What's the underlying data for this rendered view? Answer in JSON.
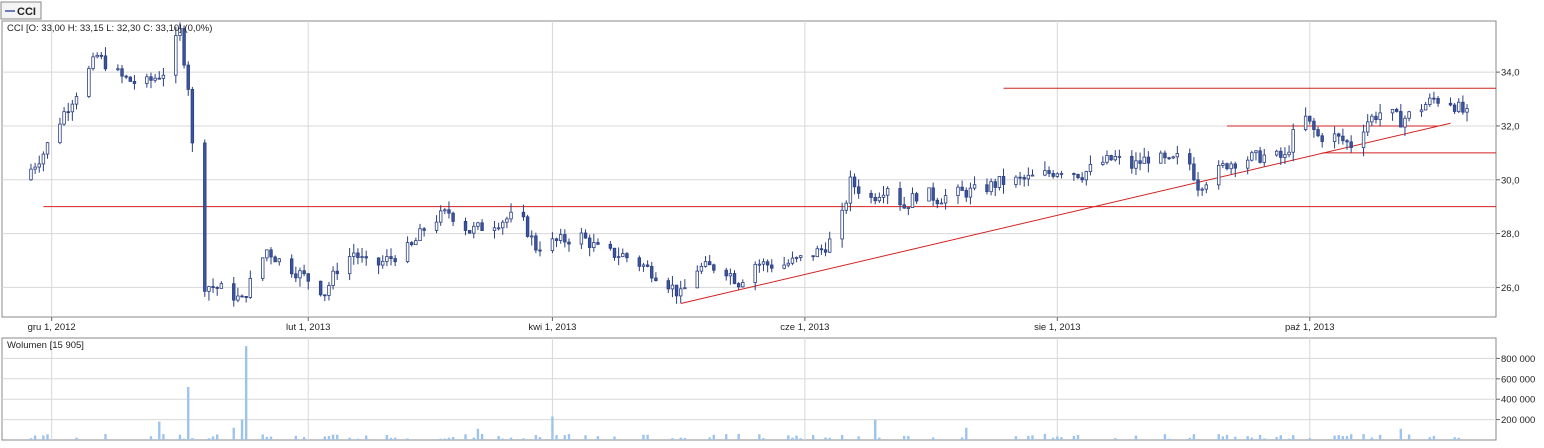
{
  "legend_tab": {
    "label": "CCI"
  },
  "colors": {
    "candle": "#3b55a0",
    "candle_outline": "#2b3f80",
    "trendline": "#d42020",
    "grid": "#d8d8d8",
    "volume_bar": "#9ec4ec",
    "axis_text": "#222222"
  },
  "chart_data": [
    {
      "type": "candlestick",
      "title": "CCI [O: 33,00  H: 33,15  L: 32,30  C: 33,10] (0,0%)",
      "x_tick_labels": [
        "gru 1, 2012",
        "lut 1, 2013",
        "kwi 1, 2013",
        "cze 1, 2013",
        "sie 1, 2013",
        "paź 1, 2013"
      ],
      "x_tick_dates": [
        "2012-12-01",
        "2013-02-01",
        "2013-04-01",
        "2013-06-01",
        "2013-08-01",
        "2013-10-01"
      ],
      "x_range": [
        "2012-11-19",
        "2013-11-15"
      ],
      "y_tick_labels": [
        "26,0",
        "28,0",
        "30,0",
        "32,0",
        "34,0"
      ],
      "y_tick_values": [
        26,
        28,
        30,
        32,
        34
      ],
      "ylim": [
        24.9,
        35.9
      ],
      "grid": true,
      "horizontal_lines": [
        {
          "y": 29.0,
          "from": "2012-11-29",
          "to": "2013-11-15"
        },
        {
          "y": 31.0,
          "from": "2013-10-04",
          "to": "2013-11-15"
        },
        {
          "y": 32.0,
          "from": "2013-09-11",
          "to": "2013-11-01"
        },
        {
          "y": 33.4,
          "from": "2013-07-19",
          "to": "2013-11-15"
        }
      ],
      "trend_lines": [
        {
          "from": [
            "2013-05-02",
            25.4
          ],
          "to": [
            "2013-11-04",
            32.1
          ]
        }
      ],
      "anchors": [
        [
          "2012-11-24",
          30.0
        ],
        [
          "2012-11-29",
          31.0
        ],
        [
          "2012-12-04",
          32.5
        ],
        [
          "2012-12-08",
          33.5
        ],
        [
          "2012-12-12",
          34.6
        ],
        [
          "2012-12-15",
          34.2
        ],
        [
          "2012-12-18",
          33.8
        ],
        [
          "2012-12-23",
          33.5
        ],
        [
          "2012-12-28",
          34.0
        ],
        [
          "2013-01-01",
          35.5
        ],
        [
          "2013-01-03",
          33.5
        ],
        [
          "2013-01-05",
          29.0
        ],
        [
          "2013-01-07",
          26.1
        ],
        [
          "2013-01-12",
          25.9
        ],
        [
          "2013-01-16",
          25.5
        ],
        [
          "2013-01-19",
          26.5
        ],
        [
          "2013-01-22",
          27.4
        ],
        [
          "2013-01-25",
          27.0
        ],
        [
          "2013-01-30",
          26.5
        ],
        [
          "2013-02-02",
          26.2
        ],
        [
          "2013-02-05",
          25.8
        ],
        [
          "2013-02-08",
          26.7
        ],
        [
          "2013-02-12",
          27.3
        ],
        [
          "2013-02-16",
          26.7
        ],
        [
          "2013-02-21",
          27.1
        ],
        [
          "2013-02-26",
          27.5
        ],
        [
          "2013-03-02",
          28.4
        ],
        [
          "2013-03-07",
          28.8
        ],
        [
          "2013-03-12",
          28.1
        ],
        [
          "2013-03-16",
          28.3
        ],
        [
          "2013-03-20",
          28.5
        ],
        [
          "2013-03-24",
          28.7
        ],
        [
          "2013-03-28",
          27.5
        ],
        [
          "2013-04-02",
          27.7
        ],
        [
          "2013-04-08",
          27.9
        ],
        [
          "2013-04-13",
          27.3
        ],
        [
          "2013-04-18",
          27.2
        ],
        [
          "2013-04-23",
          26.8
        ],
        [
          "2013-04-28",
          26.3
        ],
        [
          "2013-05-02",
          25.7
        ],
        [
          "2013-05-06",
          26.7
        ],
        [
          "2013-05-12",
          26.8
        ],
        [
          "2013-05-16",
          26.2
        ],
        [
          "2013-05-20",
          26.9
        ],
        [
          "2013-05-26",
          26.8
        ],
        [
          "2013-06-01",
          27.1
        ],
        [
          "2013-06-05",
          27.4
        ],
        [
          "2013-06-09",
          28.0
        ],
        [
          "2013-06-12",
          29.9
        ],
        [
          "2013-06-17",
          29.3
        ],
        [
          "2013-06-21",
          29.8
        ],
        [
          "2013-06-25",
          29.0
        ],
        [
          "2013-06-29",
          29.6
        ],
        [
          "2013-07-03",
          29.3
        ],
        [
          "2013-07-08",
          29.5
        ],
        [
          "2013-07-13",
          29.6
        ],
        [
          "2013-07-18",
          29.9
        ],
        [
          "2013-07-24",
          30.0
        ],
        [
          "2013-07-29",
          30.2
        ],
        [
          "2013-08-02",
          30.4
        ],
        [
          "2013-08-07",
          30.2
        ],
        [
          "2013-08-11",
          30.6
        ],
        [
          "2013-08-15",
          30.8
        ],
        [
          "2013-08-19",
          30.5
        ],
        [
          "2013-08-24",
          30.9
        ],
        [
          "2013-08-28",
          30.6
        ],
        [
          "2013-09-01",
          31.0
        ],
        [
          "2013-09-04",
          29.8
        ],
        [
          "2013-09-08",
          30.2
        ],
        [
          "2013-09-11",
          30.6
        ],
        [
          "2013-09-16",
          30.8
        ],
        [
          "2013-09-21",
          30.9
        ],
        [
          "2013-09-25",
          30.8
        ],
        [
          "2013-09-29",
          32.5
        ],
        [
          "2013-10-03",
          31.6
        ],
        [
          "2013-10-07",
          31.6
        ],
        [
          "2013-10-11",
          31.3
        ],
        [
          "2013-10-15",
          32.2
        ],
        [
          "2013-10-19",
          32.6
        ],
        [
          "2013-10-23",
          32.2
        ],
        [
          "2013-10-27",
          32.6
        ],
        [
          "2013-10-31",
          33.0
        ],
        [
          "2013-11-04",
          32.9
        ],
        [
          "2013-11-08",
          32.4
        ],
        [
          "2013-11-10",
          33.1
        ]
      ]
    },
    {
      "type": "bar",
      "title": "Wolumen [15 905]",
      "y_tick_labels": [
        "200 000",
        "400 000",
        "600 000",
        "800 000"
      ],
      "y_tick_values": [
        200000,
        400000,
        600000,
        800000
      ],
      "ylim": [
        0,
        1000000
      ],
      "grid": true,
      "spikes": [
        [
          "2012-12-27",
          180000
        ],
        [
          "2013-01-03",
          520000
        ],
        [
          "2013-01-05",
          300000
        ],
        [
          "2013-01-14",
          120000
        ],
        [
          "2013-01-16",
          200000
        ],
        [
          "2013-01-17",
          920000
        ],
        [
          "2013-01-19",
          550000
        ],
        [
          "2013-01-20",
          160000
        ],
        [
          "2013-03-14",
          110000
        ],
        [
          "2013-04-01",
          230000
        ],
        [
          "2013-06-18",
          200000
        ],
        [
          "2013-07-10",
          120000
        ],
        [
          "2013-10-23",
          110000
        ]
      ],
      "base_volume": 30000
    }
  ]
}
